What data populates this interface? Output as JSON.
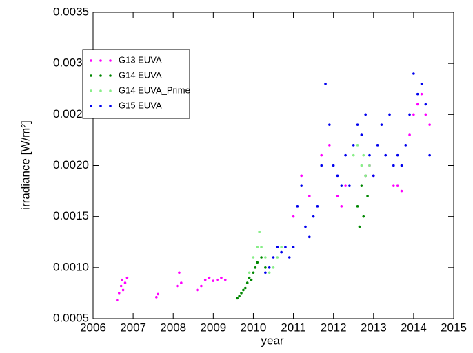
{
  "chart_data": {
    "type": "scatter",
    "xlabel": "year",
    "ylabel": "irradiance [W/m²]",
    "xlim": [
      2006,
      2015
    ],
    "xticks": [
      2006,
      2007,
      2008,
      2009,
      2010,
      2011,
      2012,
      2013,
      2014,
      2015
    ],
    "ylim": [
      0.0005,
      0.0035
    ],
    "yticks": [
      0.0005,
      {
        "value": 0.001,
        "label": "0.0010"
      },
      0.0015,
      {
        "value": 0.002,
        "label": "0.0020"
      },
      0.0025,
      {
        "value": 0.003,
        "label": "0.0030"
      },
      0.0035
    ],
    "legend": "upper left",
    "series": [
      {
        "name": "G13 EUVA",
        "color": "#ff00ff",
        "x": [
          2006.6,
          2006.65,
          2006.7,
          2006.72,
          2006.75,
          2006.8,
          2006.85,
          2007.58,
          2007.62,
          2008.1,
          2008.15,
          2008.2,
          2008.6,
          2008.7,
          2008.8,
          2008.9,
          2009.0,
          2009.1,
          2009.2,
          2009.3,
          2011.0,
          2011.2,
          2011.4,
          2011.7,
          2011.9,
          2012.1,
          2012.2,
          2012.3,
          2012.8,
          2012.9,
          2013.0,
          2013.5,
          2013.6,
          2013.7,
          2013.9,
          2014.0,
          2014.1,
          2014.2,
          2014.3,
          2014.4
        ],
        "values": [
          0.00068,
          0.00075,
          0.00082,
          0.00088,
          0.00078,
          0.00085,
          0.0009,
          0.00071,
          0.00074,
          0.00082,
          0.00095,
          0.00085,
          0.00078,
          0.00082,
          0.00088,
          0.0009,
          0.00087,
          0.00088,
          0.0009,
          0.00088,
          0.0015,
          0.0019,
          0.0017,
          0.0021,
          0.0022,
          0.0017,
          0.0016,
          0.0018,
          0.0019,
          0.002,
          0.0019,
          0.0018,
          0.0018,
          0.00175,
          0.0023,
          0.0025,
          0.0026,
          0.0027,
          0.0025,
          0.0024
        ]
      },
      {
        "name": "G14 EUVA",
        "color": "#008800",
        "x": [
          2009.6,
          2009.65,
          2009.7,
          2009.75,
          2009.8,
          2009.85,
          2009.9,
          2009.95,
          2010.0,
          2010.05,
          2010.1,
          2010.2,
          2010.3,
          2012.6,
          2012.65,
          2012.7,
          2012.75,
          2012.8,
          2012.85
        ],
        "values": [
          0.0007,
          0.00072,
          0.00075,
          0.00078,
          0.0008,
          0.00085,
          0.0009,
          0.00088,
          0.00095,
          0.001,
          0.00105,
          0.0011,
          0.001,
          0.0016,
          0.0014,
          0.0018,
          0.0015,
          0.0019,
          0.0017
        ]
      },
      {
        "name": "G14 EUVA_Prime",
        "color": "#88ee88",
        "x": [
          2009.9,
          2010.0,
          2010.1,
          2010.15,
          2010.2,
          2010.3,
          2010.4,
          2010.5,
          2010.6,
          2010.7,
          2012.5,
          2012.6,
          2012.7,
          2012.75,
          2012.8,
          2012.9
        ],
        "values": [
          0.00095,
          0.0011,
          0.0012,
          0.00135,
          0.0012,
          0.0011,
          0.00095,
          0.001,
          0.0011,
          0.0012,
          0.0021,
          0.0022,
          0.002,
          0.0021,
          0.0019,
          0.002
        ]
      },
      {
        "name": "G15 EUVA",
        "color": "#0000ee",
        "x": [
          2010.3,
          2010.4,
          2010.5,
          2010.6,
          2010.7,
          2010.8,
          2010.9,
          2011.0,
          2011.1,
          2011.2,
          2011.3,
          2011.4,
          2011.5,
          2011.6,
          2011.7,
          2011.8,
          2011.9,
          2012.0,
          2012.1,
          2012.2,
          2012.3,
          2012.4,
          2012.5,
          2012.6,
          2012.7,
          2012.8,
          2012.9,
          2013.0,
          2013.1,
          2013.2,
          2013.3,
          2013.4,
          2013.5,
          2013.6,
          2013.7,
          2013.8,
          2013.9,
          2014.0,
          2014.1,
          2014.2,
          2014.3,
          2014.4
        ],
        "values": [
          0.00095,
          0.001,
          0.0011,
          0.0012,
          0.00115,
          0.0012,
          0.0011,
          0.0012,
          0.0016,
          0.0018,
          0.0014,
          0.0013,
          0.0015,
          0.0016,
          0.002,
          0.0028,
          0.0024,
          0.002,
          0.0019,
          0.0018,
          0.0021,
          0.0018,
          0.0022,
          0.0024,
          0.0023,
          0.0025,
          0.0021,
          0.0019,
          0.0022,
          0.0024,
          0.0021,
          0.0025,
          0.002,
          0.0021,
          0.002,
          0.0022,
          0.0025,
          0.0029,
          0.0027,
          0.0028,
          0.0026,
          0.0021
        ]
      }
    ]
  }
}
